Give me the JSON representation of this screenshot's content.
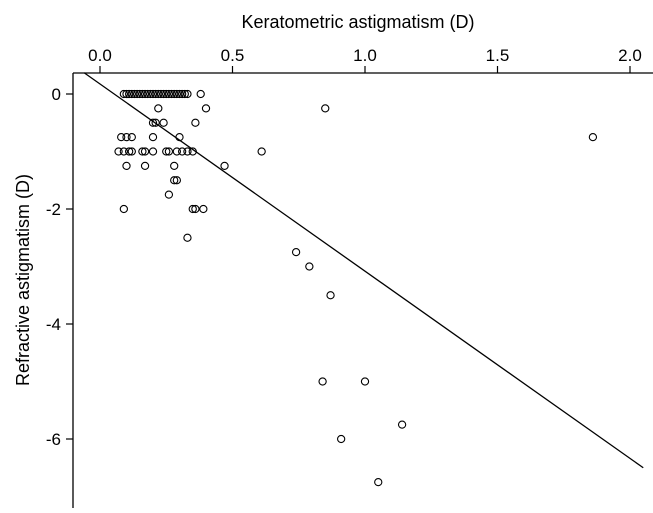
{
  "chart_data": {
    "type": "scatter",
    "title": "",
    "xlabel": "Keratometric astigmatism (D)",
    "ylabel": "Refractive astigmatism (D)",
    "x_axis_position": "top",
    "xlim": [
      -0.08,
      2.05
    ],
    "ylim": [
      -7.0,
      0.4
    ],
    "xticks": [
      0.0,
      0.5,
      1.0,
      1.5,
      2.0
    ],
    "xtick_labels": [
      "0.0",
      "0.5",
      "1.0",
      "1.5",
      "2.0"
    ],
    "yticks": [
      0,
      -2,
      -4,
      -6
    ],
    "ytick_labels": [
      "0",
      "-2",
      "-4",
      "-6"
    ],
    "grid": false,
    "legend": "none",
    "marker": "open-circle",
    "colors": {
      "marker": "#000000",
      "line": "#000000",
      "axis": "#000000"
    },
    "fit_line": {
      "type": "linear",
      "x": [
        -0.06,
        2.05
      ],
      "y": [
        0.37,
        -6.5
      ]
    },
    "points": [
      {
        "x": 0.09,
        "y": 0.0
      },
      {
        "x": 0.1,
        "y": 0.0
      },
      {
        "x": 0.11,
        "y": 0.0
      },
      {
        "x": 0.12,
        "y": 0.0
      },
      {
        "x": 0.13,
        "y": 0.0
      },
      {
        "x": 0.14,
        "y": 0.0
      },
      {
        "x": 0.15,
        "y": 0.0
      },
      {
        "x": 0.16,
        "y": 0.0
      },
      {
        "x": 0.17,
        "y": 0.0
      },
      {
        "x": 0.18,
        "y": 0.0
      },
      {
        "x": 0.19,
        "y": 0.0
      },
      {
        "x": 0.2,
        "y": 0.0
      },
      {
        "x": 0.21,
        "y": 0.0
      },
      {
        "x": 0.22,
        "y": 0.0
      },
      {
        "x": 0.23,
        "y": 0.0
      },
      {
        "x": 0.24,
        "y": 0.0
      },
      {
        "x": 0.25,
        "y": 0.0
      },
      {
        "x": 0.26,
        "y": 0.0
      },
      {
        "x": 0.27,
        "y": 0.0
      },
      {
        "x": 0.28,
        "y": 0.0
      },
      {
        "x": 0.29,
        "y": 0.0
      },
      {
        "x": 0.3,
        "y": 0.0
      },
      {
        "x": 0.31,
        "y": 0.0
      },
      {
        "x": 0.32,
        "y": 0.0
      },
      {
        "x": 0.33,
        "y": 0.0
      },
      {
        "x": 0.38,
        "y": 0.0
      },
      {
        "x": 0.22,
        "y": -0.25
      },
      {
        "x": 0.4,
        "y": -0.25
      },
      {
        "x": 0.85,
        "y": -0.25
      },
      {
        "x": 0.2,
        "y": -0.5
      },
      {
        "x": 0.21,
        "y": -0.5
      },
      {
        "x": 0.24,
        "y": -0.5
      },
      {
        "x": 0.36,
        "y": -0.5
      },
      {
        "x": 0.08,
        "y": -0.75
      },
      {
        "x": 0.1,
        "y": -0.75
      },
      {
        "x": 0.12,
        "y": -0.75
      },
      {
        "x": 0.2,
        "y": -0.75
      },
      {
        "x": 0.3,
        "y": -0.75
      },
      {
        "x": 1.86,
        "y": -0.75
      },
      {
        "x": 0.07,
        "y": -1.0
      },
      {
        "x": 0.09,
        "y": -1.0
      },
      {
        "x": 0.11,
        "y": -1.0
      },
      {
        "x": 0.12,
        "y": -1.0
      },
      {
        "x": 0.16,
        "y": -1.0
      },
      {
        "x": 0.17,
        "y": -1.0
      },
      {
        "x": 0.2,
        "y": -1.0
      },
      {
        "x": 0.25,
        "y": -1.0
      },
      {
        "x": 0.26,
        "y": -1.0
      },
      {
        "x": 0.29,
        "y": -1.0
      },
      {
        "x": 0.31,
        "y": -1.0
      },
      {
        "x": 0.33,
        "y": -1.0
      },
      {
        "x": 0.35,
        "y": -1.0
      },
      {
        "x": 0.61,
        "y": -1.0
      },
      {
        "x": 0.1,
        "y": -1.25
      },
      {
        "x": 0.17,
        "y": -1.25
      },
      {
        "x": 0.28,
        "y": -1.25
      },
      {
        "x": 0.47,
        "y": -1.25
      },
      {
        "x": 0.28,
        "y": -1.5
      },
      {
        "x": 0.29,
        "y": -1.5
      },
      {
        "x": 0.26,
        "y": -1.75
      },
      {
        "x": 0.09,
        "y": -2.0
      },
      {
        "x": 0.35,
        "y": -2.0
      },
      {
        "x": 0.36,
        "y": -2.0
      },
      {
        "x": 0.39,
        "y": -2.0
      },
      {
        "x": 0.33,
        "y": -2.5
      },
      {
        "x": 0.74,
        "y": -2.75
      },
      {
        "x": 0.79,
        "y": -3.0
      },
      {
        "x": 0.87,
        "y": -3.5
      },
      {
        "x": 0.84,
        "y": -5.0
      },
      {
        "x": 1.0,
        "y": -5.0
      },
      {
        "x": 1.14,
        "y": -5.75
      },
      {
        "x": 0.91,
        "y": -6.0
      },
      {
        "x": 1.05,
        "y": -6.75
      }
    ]
  }
}
